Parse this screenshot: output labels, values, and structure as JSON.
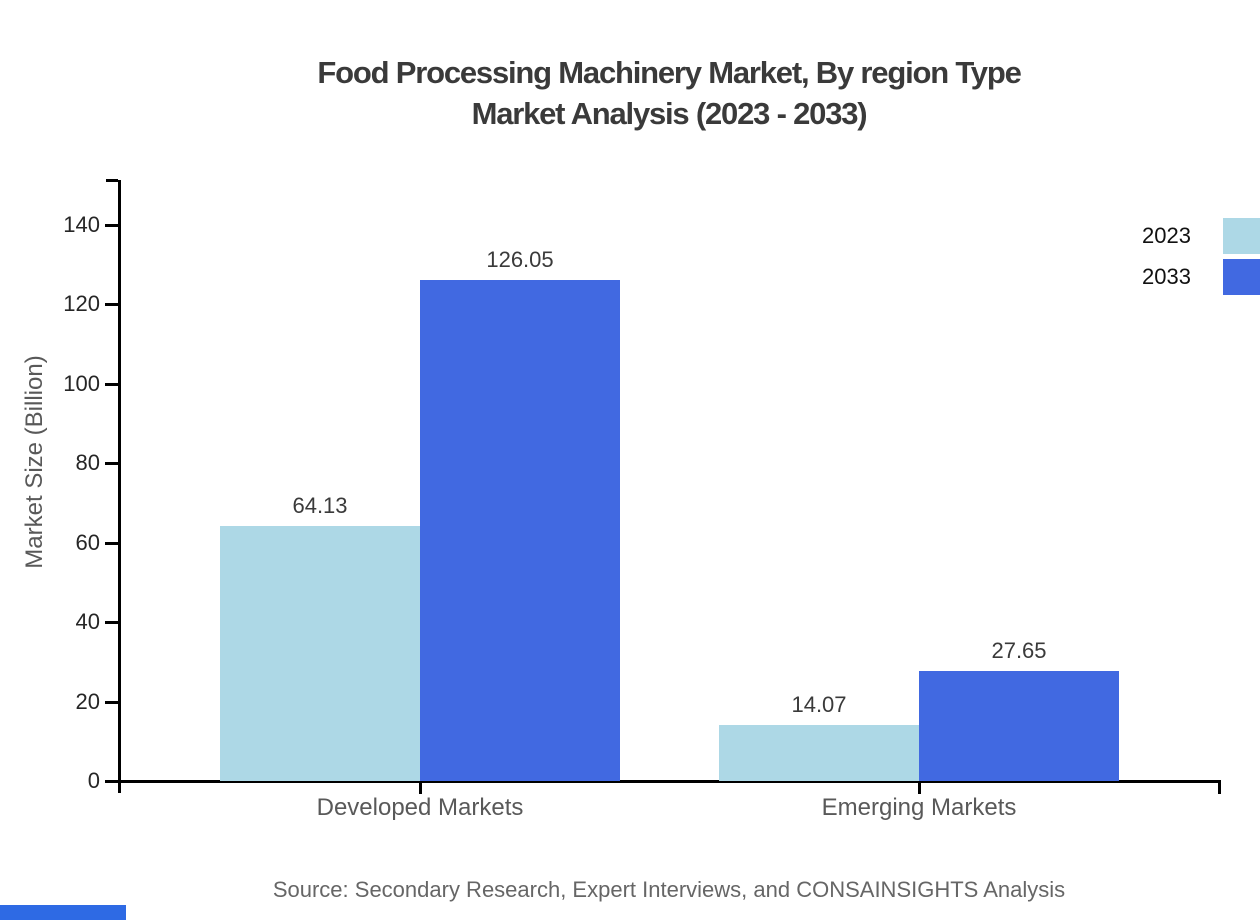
{
  "title": {
    "line1": "Food Processing Machinery Market, By region Type",
    "line2": "Market Analysis (2023 - 2033)"
  },
  "chart_data": {
    "type": "bar",
    "title": "Food Processing Machinery Market, By region Type Market Analysis (2023 - 2033)",
    "categories": [
      "Developed Markets",
      "Emerging Markets"
    ],
    "series": [
      {
        "name": "2023",
        "color": "#add8e6",
        "values": [
          64.13,
          14.07
        ]
      },
      {
        "name": "2033",
        "color": "#4169e1",
        "values": [
          126.05,
          27.65
        ]
      }
    ],
    "value_labels": [
      [
        "64.13",
        "14.07"
      ],
      [
        "126.05",
        "27.65"
      ]
    ],
    "xlabel": "",
    "ylabel": "Market Size (Billion)",
    "ylim": [
      0,
      151
    ],
    "yticks": [
      0,
      20,
      40,
      60,
      80,
      100,
      120,
      140
    ],
    "grid": false,
    "legend_position": "top-right"
  },
  "footer": {
    "source": "Source: Secondary Research, Expert Interviews, and CONSAINSIGHTS Analysis"
  },
  "colors": {
    "series_2023": "#add8e6",
    "series_2033": "#4169e1",
    "axis": "#000000",
    "title_text": "#3a3a3a",
    "tick_text": "#262626",
    "label_text": "#595959",
    "source_text": "#666666",
    "brand_bar": "#2e6ae4"
  }
}
